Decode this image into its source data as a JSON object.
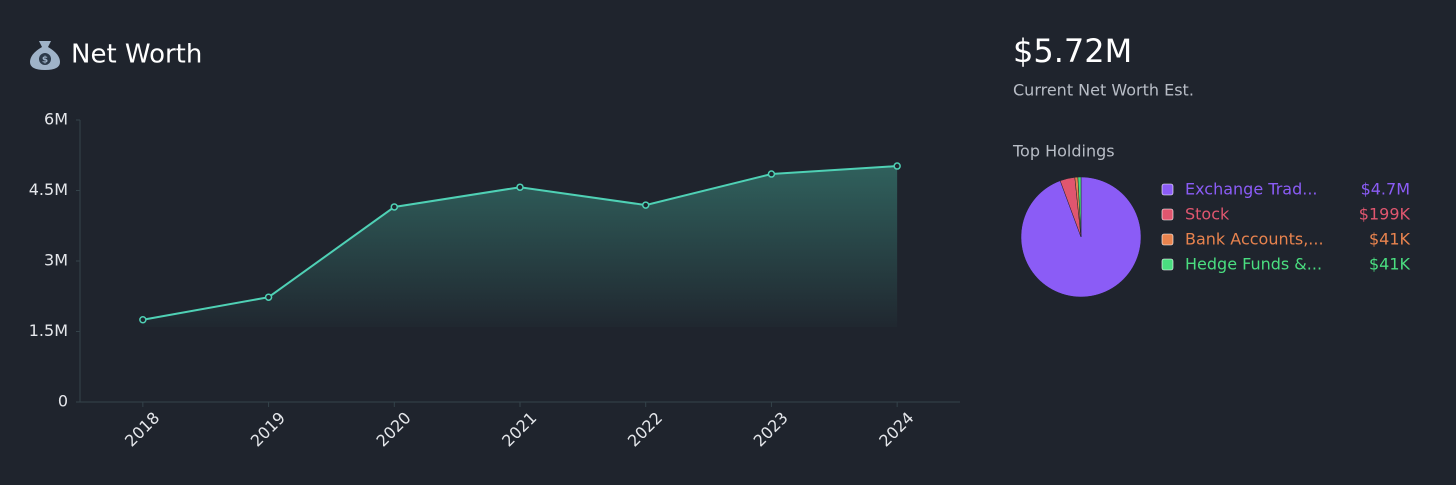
{
  "header": {
    "title": "Net Worth"
  },
  "summary": {
    "value": "$5.72M",
    "caption": "Current Net Worth Est.",
    "holdings_title": "Top Holdings"
  },
  "chart_data": [
    {
      "type": "area",
      "categories": [
        "2018",
        "2019",
        "2020",
        "2021",
        "2022",
        "2023",
        "2024"
      ],
      "values": [
        1750000,
        2230000,
        4150000,
        4570000,
        4190000,
        4850000,
        5020000
      ],
      "color": "#4fd1b5",
      "ylim": [
        0,
        6000000
      ],
      "yticks": [
        0,
        {
          "value": 1500000,
          "label": "1.5M"
        },
        {
          "value": 3000000,
          "label": "3M"
        },
        {
          "value": 4500000,
          "label": "4.5M"
        },
        {
          "value": 6000000,
          "label": "6M"
        }
      ]
    },
    {
      "type": "pie",
      "categories": [
        "Exchange Trad...",
        "Stock",
        "Bank Accounts,...",
        "Hedge Funds &..."
      ],
      "values": [
        4700000,
        199000,
        41000,
        41000
      ],
      "value_labels": [
        "$4.7M",
        "$199K",
        "$41K",
        "$41K"
      ],
      "colors": [
        "#8b5cf6",
        "#e0566f",
        "#e8834e",
        "#4ade80"
      ]
    }
  ]
}
